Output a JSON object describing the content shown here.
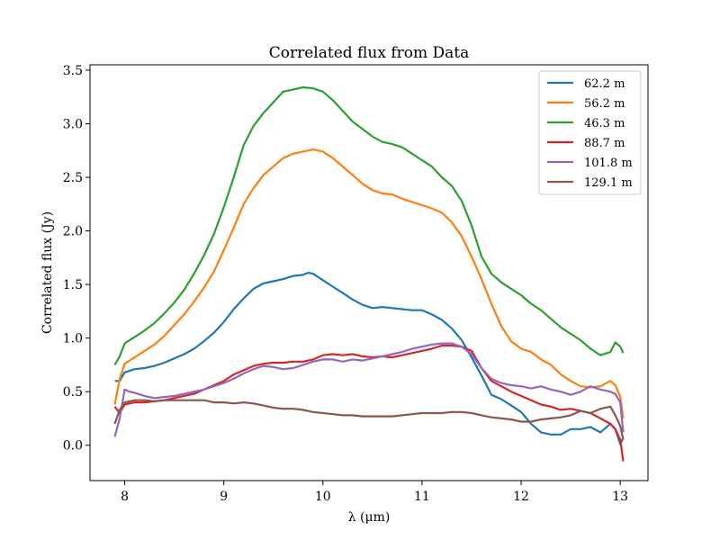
{
  "chart_data": {
    "type": "line",
    "title": "Correlated flux from Data",
    "xlabel": "λ (μm)",
    "ylabel": "Correlated flux (Jy)",
    "xlim": [
      7.65,
      13.28
    ],
    "ylim": [
      -0.33,
      3.55
    ],
    "xticks": [
      8,
      9,
      10,
      11,
      12,
      13
    ],
    "yticks": [
      0.0,
      0.5,
      1.0,
      1.5,
      2.0,
      2.5,
      3.0,
      3.5
    ],
    "xtick_labels": [
      "8",
      "9",
      "10",
      "11",
      "12",
      "13"
    ],
    "ytick_labels": [
      "0.0",
      "0.5",
      "1.0",
      "1.5",
      "2.0",
      "2.5",
      "3.0",
      "3.5"
    ],
    "grid": false,
    "legend_position": "top-right",
    "series": [
      {
        "name": "62.2 m",
        "color": "#1f77b4",
        "x": [
          7.9,
          7.95,
          8.0,
          8.1,
          8.2,
          8.3,
          8.4,
          8.5,
          8.6,
          8.7,
          8.8,
          8.9,
          9.0,
          9.1,
          9.2,
          9.3,
          9.4,
          9.5,
          9.6,
          9.7,
          9.8,
          9.85,
          9.9,
          10.0,
          10.1,
          10.2,
          10.3,
          10.4,
          10.5,
          10.6,
          10.7,
          10.8,
          10.9,
          11.0,
          11.1,
          11.2,
          11.3,
          11.4,
          11.5,
          11.6,
          11.7,
          11.8,
          11.9,
          12.0,
          12.1,
          12.2,
          12.3,
          12.4,
          12.5,
          12.6,
          12.7,
          12.8,
          12.9,
          12.95,
          13.0,
          13.03
        ],
        "y": [
          0.6,
          0.6,
          0.68,
          0.71,
          0.72,
          0.74,
          0.77,
          0.81,
          0.85,
          0.9,
          0.97,
          1.05,
          1.15,
          1.27,
          1.37,
          1.46,
          1.51,
          1.53,
          1.55,
          1.58,
          1.59,
          1.61,
          1.6,
          1.54,
          1.48,
          1.42,
          1.36,
          1.31,
          1.28,
          1.29,
          1.28,
          1.27,
          1.26,
          1.26,
          1.22,
          1.17,
          1.09,
          0.98,
          0.82,
          0.65,
          0.47,
          0.43,
          0.37,
          0.31,
          0.2,
          0.12,
          0.1,
          0.1,
          0.15,
          0.15,
          0.17,
          0.12,
          0.2,
          0.15,
          0.01,
          0.07
        ]
      },
      {
        "name": "56.2 m",
        "color": "#ff7f0e",
        "x": [
          7.9,
          7.95,
          8.0,
          8.1,
          8.2,
          8.3,
          8.4,
          8.5,
          8.6,
          8.7,
          8.8,
          8.9,
          9.0,
          9.1,
          9.2,
          9.3,
          9.4,
          9.5,
          9.6,
          9.7,
          9.8,
          9.9,
          10.0,
          10.1,
          10.2,
          10.3,
          10.4,
          10.5,
          10.6,
          10.7,
          10.8,
          10.9,
          11.0,
          11.1,
          11.2,
          11.3,
          11.4,
          11.5,
          11.6,
          11.7,
          11.8,
          11.9,
          12.0,
          12.1,
          12.2,
          12.3,
          12.4,
          12.5,
          12.6,
          12.7,
          12.8,
          12.9,
          12.95,
          13.0,
          13.03
        ],
        "y": [
          0.38,
          0.62,
          0.76,
          0.82,
          0.88,
          0.94,
          1.02,
          1.12,
          1.22,
          1.34,
          1.47,
          1.62,
          1.82,
          2.03,
          2.25,
          2.4,
          2.52,
          2.6,
          2.68,
          2.72,
          2.74,
          2.76,
          2.74,
          2.68,
          2.6,
          2.52,
          2.44,
          2.38,
          2.35,
          2.34,
          2.3,
          2.27,
          2.24,
          2.21,
          2.17,
          2.08,
          1.95,
          1.76,
          1.55,
          1.32,
          1.11,
          0.97,
          0.9,
          0.87,
          0.8,
          0.75,
          0.66,
          0.6,
          0.55,
          0.54,
          0.55,
          0.6,
          0.56,
          0.45,
          0.25
        ]
      },
      {
        "name": "46.3 m",
        "color": "#2ca02c",
        "x": [
          7.9,
          7.95,
          8.0,
          8.1,
          8.2,
          8.3,
          8.4,
          8.5,
          8.6,
          8.7,
          8.8,
          8.9,
          9.0,
          9.1,
          9.2,
          9.3,
          9.4,
          9.5,
          9.6,
          9.7,
          9.8,
          9.9,
          10.0,
          10.1,
          10.2,
          10.3,
          10.4,
          10.5,
          10.6,
          10.7,
          10.8,
          10.9,
          11.0,
          11.1,
          11.2,
          11.3,
          11.4,
          11.5,
          11.6,
          11.7,
          11.8,
          11.9,
          12.0,
          12.1,
          12.2,
          12.3,
          12.4,
          12.5,
          12.6,
          12.7,
          12.8,
          12.9,
          12.95,
          13.0,
          13.03
        ],
        "y": [
          0.75,
          0.83,
          0.95,
          1.01,
          1.07,
          1.14,
          1.23,
          1.33,
          1.45,
          1.6,
          1.77,
          1.97,
          2.22,
          2.5,
          2.8,
          2.98,
          3.1,
          3.2,
          3.3,
          3.32,
          3.34,
          3.33,
          3.3,
          3.22,
          3.12,
          3.02,
          2.95,
          2.88,
          2.83,
          2.81,
          2.78,
          2.72,
          2.66,
          2.6,
          2.5,
          2.42,
          2.28,
          2.05,
          1.76,
          1.6,
          1.52,
          1.46,
          1.4,
          1.32,
          1.26,
          1.18,
          1.1,
          1.04,
          0.98,
          0.9,
          0.84,
          0.87,
          0.96,
          0.92,
          0.86
        ]
      },
      {
        "name": "88.7 m",
        "color": "#d62728",
        "x": [
          7.9,
          7.95,
          8.0,
          8.1,
          8.2,
          8.3,
          8.4,
          8.5,
          8.6,
          8.7,
          8.8,
          8.9,
          9.0,
          9.1,
          9.2,
          9.3,
          9.4,
          9.5,
          9.6,
          9.7,
          9.8,
          9.9,
          10.0,
          10.1,
          10.2,
          10.3,
          10.4,
          10.5,
          10.6,
          10.7,
          10.8,
          10.9,
          11.0,
          11.1,
          11.2,
          11.3,
          11.4,
          11.5,
          11.6,
          11.7,
          11.8,
          11.9,
          12.0,
          12.1,
          12.2,
          12.3,
          12.4,
          12.5,
          12.6,
          12.7,
          12.8,
          12.9,
          12.95,
          13.0,
          13.03
        ],
        "y": [
          0.36,
          0.3,
          0.38,
          0.4,
          0.4,
          0.41,
          0.42,
          0.44,
          0.46,
          0.48,
          0.52,
          0.56,
          0.6,
          0.66,
          0.7,
          0.74,
          0.76,
          0.77,
          0.77,
          0.78,
          0.78,
          0.8,
          0.84,
          0.85,
          0.84,
          0.85,
          0.83,
          0.82,
          0.83,
          0.82,
          0.84,
          0.86,
          0.88,
          0.9,
          0.93,
          0.93,
          0.92,
          0.88,
          0.72,
          0.6,
          0.55,
          0.5,
          0.46,
          0.42,
          0.38,
          0.36,
          0.33,
          0.34,
          0.32,
          0.3,
          0.25,
          0.2,
          0.15,
          0.05,
          -0.15
        ]
      },
      {
        "name": "101.8 m",
        "color": "#9467bd",
        "x": [
          7.9,
          7.95,
          8.0,
          8.05,
          8.1,
          8.2,
          8.3,
          8.4,
          8.5,
          8.6,
          8.7,
          8.8,
          8.9,
          9.0,
          9.1,
          9.2,
          9.3,
          9.4,
          9.5,
          9.6,
          9.7,
          9.8,
          9.9,
          10.0,
          10.1,
          10.2,
          10.3,
          10.4,
          10.5,
          10.6,
          10.7,
          10.8,
          10.9,
          11.0,
          11.1,
          11.2,
          11.3,
          11.4,
          11.5,
          11.6,
          11.7,
          11.8,
          11.9,
          12.0,
          12.1,
          12.2,
          12.3,
          12.4,
          12.5,
          12.6,
          12.7,
          12.8,
          12.9,
          12.95,
          13.0,
          13.03
        ],
        "y": [
          0.08,
          0.25,
          0.52,
          0.5,
          0.49,
          0.46,
          0.44,
          0.45,
          0.46,
          0.48,
          0.5,
          0.52,
          0.55,
          0.58,
          0.62,
          0.67,
          0.71,
          0.74,
          0.73,
          0.71,
          0.72,
          0.75,
          0.78,
          0.8,
          0.8,
          0.78,
          0.8,
          0.79,
          0.81,
          0.83,
          0.85,
          0.87,
          0.9,
          0.92,
          0.94,
          0.95,
          0.95,
          0.92,
          0.85,
          0.72,
          0.62,
          0.58,
          0.56,
          0.55,
          0.53,
          0.55,
          0.52,
          0.5,
          0.47,
          0.5,
          0.55,
          0.52,
          0.5,
          0.48,
          0.4,
          0.12
        ]
      },
      {
        "name": "129.1 m",
        "color": "#8c564b",
        "x": [
          7.9,
          7.95,
          8.0,
          8.1,
          8.2,
          8.3,
          8.4,
          8.5,
          8.6,
          8.7,
          8.8,
          8.9,
          9.0,
          9.1,
          9.2,
          9.3,
          9.4,
          9.5,
          9.6,
          9.7,
          9.8,
          9.9,
          10.0,
          10.1,
          10.2,
          10.3,
          10.4,
          10.5,
          10.6,
          10.7,
          10.8,
          10.9,
          11.0,
          11.1,
          11.2,
          11.3,
          11.4,
          11.5,
          11.6,
          11.7,
          11.8,
          11.9,
          12.0,
          12.1,
          12.2,
          12.3,
          12.4,
          12.5,
          12.6,
          12.7,
          12.8,
          12.9,
          12.95,
          13.0,
          13.03
        ],
        "y": [
          0.2,
          0.33,
          0.4,
          0.42,
          0.42,
          0.41,
          0.42,
          0.42,
          0.42,
          0.42,
          0.42,
          0.4,
          0.4,
          0.39,
          0.4,
          0.39,
          0.37,
          0.35,
          0.34,
          0.34,
          0.33,
          0.31,
          0.3,
          0.29,
          0.28,
          0.28,
          0.27,
          0.27,
          0.27,
          0.27,
          0.28,
          0.29,
          0.3,
          0.3,
          0.3,
          0.31,
          0.31,
          0.3,
          0.28,
          0.26,
          0.25,
          0.24,
          0.22,
          0.22,
          0.24,
          0.25,
          0.26,
          0.28,
          0.32,
          0.3,
          0.34,
          0.36,
          0.28,
          0.18,
          0.05
        ]
      }
    ]
  }
}
